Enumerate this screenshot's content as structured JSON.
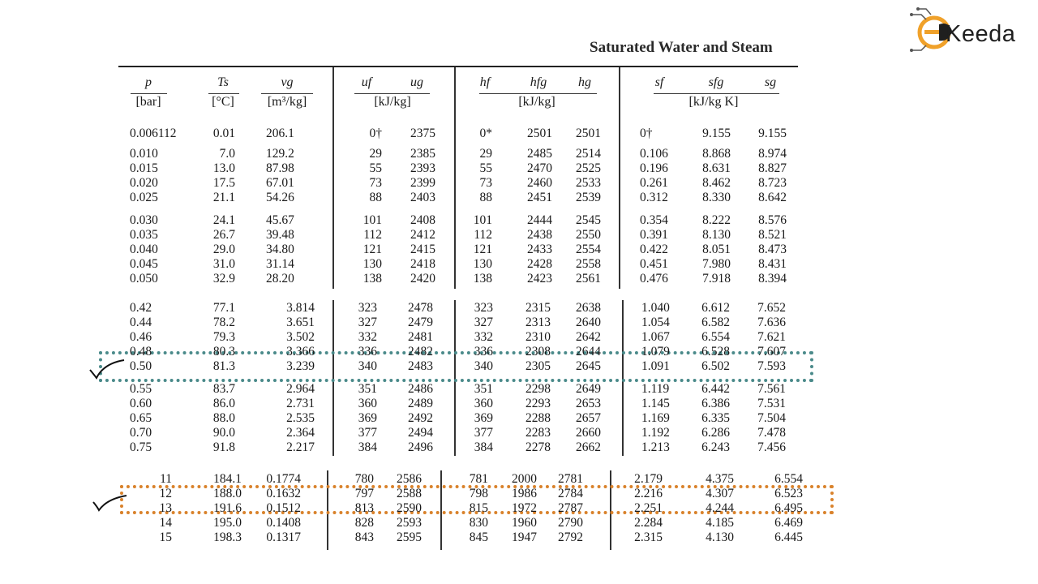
{
  "logo": {
    "text": "Keeda"
  },
  "title": "Saturated Water and Steam",
  "headers": {
    "p": "p",
    "p_unit": "[bar]",
    "ts": "Ts",
    "ts_unit": "[°C]",
    "vg": "vg",
    "vg_unit": "[m³/kg]",
    "uf": "uf",
    "ug": "ug",
    "u_unit": "[kJ/kg]",
    "hf": "hf",
    "hfg": "hfg",
    "hg": "hg",
    "h_unit": "[kJ/kg]",
    "sf": "sf",
    "sfg": "sfg",
    "sg": "sg",
    "s_unit": "[kJ/kg K]"
  },
  "rows": [
    [
      "0.006112",
      "0.01",
      "206.1",
      "0†",
      "2375",
      "0*",
      "2501",
      "2501",
      "0†",
      "9.155",
      "9.155"
    ],
    [
      "0.010",
      "7.0",
      "129.2",
      "29",
      "2385",
      "29",
      "2485",
      "2514",
      "0.106",
      "8.868",
      "8.974"
    ],
    [
      "0.015",
      "13.0",
      "87.98",
      "55",
      "2393",
      "55",
      "2470",
      "2525",
      "0.196",
      "8.631",
      "8.827"
    ],
    [
      "0.020",
      "17.5",
      "67.01",
      "73",
      "2399",
      "73",
      "2460",
      "2533",
      "0.261",
      "8.462",
      "8.723"
    ],
    [
      "0.025",
      "21.1",
      "54.26",
      "88",
      "2403",
      "88",
      "2451",
      "2539",
      "0.312",
      "8.330",
      "8.642"
    ],
    [
      "0.030",
      "24.1",
      "45.67",
      "101",
      "2408",
      "101",
      "2444",
      "2545",
      "0.354",
      "8.222",
      "8.576"
    ],
    [
      "0.035",
      "26.7",
      "39.48",
      "112",
      "2412",
      "112",
      "2438",
      "2550",
      "0.391",
      "8.130",
      "8.521"
    ],
    [
      "0.040",
      "29.0",
      "34.80",
      "121",
      "2415",
      "121",
      "2433",
      "2554",
      "0.422",
      "8.051",
      "8.473"
    ],
    [
      "0.045",
      "31.0",
      "31.14",
      "130",
      "2418",
      "130",
      "2428",
      "2558",
      "0.451",
      "7.980",
      "8.431"
    ],
    [
      "0.050",
      "32.9",
      "28.20",
      "138",
      "2420",
      "138",
      "2423",
      "2561",
      "0.476",
      "7.918",
      "8.394"
    ],
    [
      "0.42",
      "77.1",
      "3.814",
      "323",
      "2478",
      "323",
      "2315",
      "2638",
      "1.040",
      "6.612",
      "7.652"
    ],
    [
      "0.44",
      "78.2",
      "3.651",
      "327",
      "2479",
      "327",
      "2313",
      "2640",
      "1.054",
      "6.582",
      "7.636"
    ],
    [
      "0.46",
      "79.3",
      "3.502",
      "332",
      "2481",
      "332",
      "2310",
      "2642",
      "1.067",
      "6.554",
      "7.621"
    ],
    [
      "0.48",
      "80.3",
      "3.366",
      "336",
      "2482",
      "336",
      "2308",
      "2644",
      "1.079",
      "6.528",
      "7.607"
    ],
    [
      "0.50",
      "81.3",
      "3.239",
      "340",
      "2483",
      "340",
      "2305",
      "2645",
      "1.091",
      "6.502",
      "7.593"
    ],
    [
      "0.55",
      "83.7",
      "2.964",
      "351",
      "2486",
      "351",
      "2298",
      "2649",
      "1.119",
      "6.442",
      "7.561"
    ],
    [
      "0.60",
      "86.0",
      "2.731",
      "360",
      "2489",
      "360",
      "2293",
      "2653",
      "1.145",
      "6.386",
      "7.531"
    ],
    [
      "0.65",
      "88.0",
      "2.535",
      "369",
      "2492",
      "369",
      "2288",
      "2657",
      "1.169",
      "6.335",
      "7.504"
    ],
    [
      "0.70",
      "90.0",
      "2.364",
      "377",
      "2494",
      "377",
      "2283",
      "2660",
      "1.192",
      "6.286",
      "7.478"
    ],
    [
      "0.75",
      "91.8",
      "2.217",
      "384",
      "2496",
      "384",
      "2278",
      "2662",
      "1.213",
      "6.243",
      "7.456"
    ],
    [
      "11",
      "184.1",
      "0.1774",
      "780",
      "2586",
      "781",
      "2000",
      "2781",
      "2.179",
      "4.375",
      "6.554"
    ],
    [
      "12",
      "188.0",
      "0.1632",
      "797",
      "2588",
      "798",
      "1986",
      "2784",
      "2.216",
      "4.307",
      "6.523"
    ],
    [
      "13",
      "191.6",
      "0.1512",
      "813",
      "2590",
      "815",
      "1972",
      "2787",
      "2.251",
      "4.244",
      "6.495"
    ],
    [
      "14",
      "195.0",
      "0.1408",
      "828",
      "2593",
      "830",
      "1960",
      "2790",
      "2.284",
      "4.185",
      "6.469"
    ],
    [
      "15",
      "198.3",
      "0.1317",
      "843",
      "2595",
      "845",
      "1947",
      "2792",
      "2.315",
      "4.130",
      "6.445"
    ]
  ]
}
